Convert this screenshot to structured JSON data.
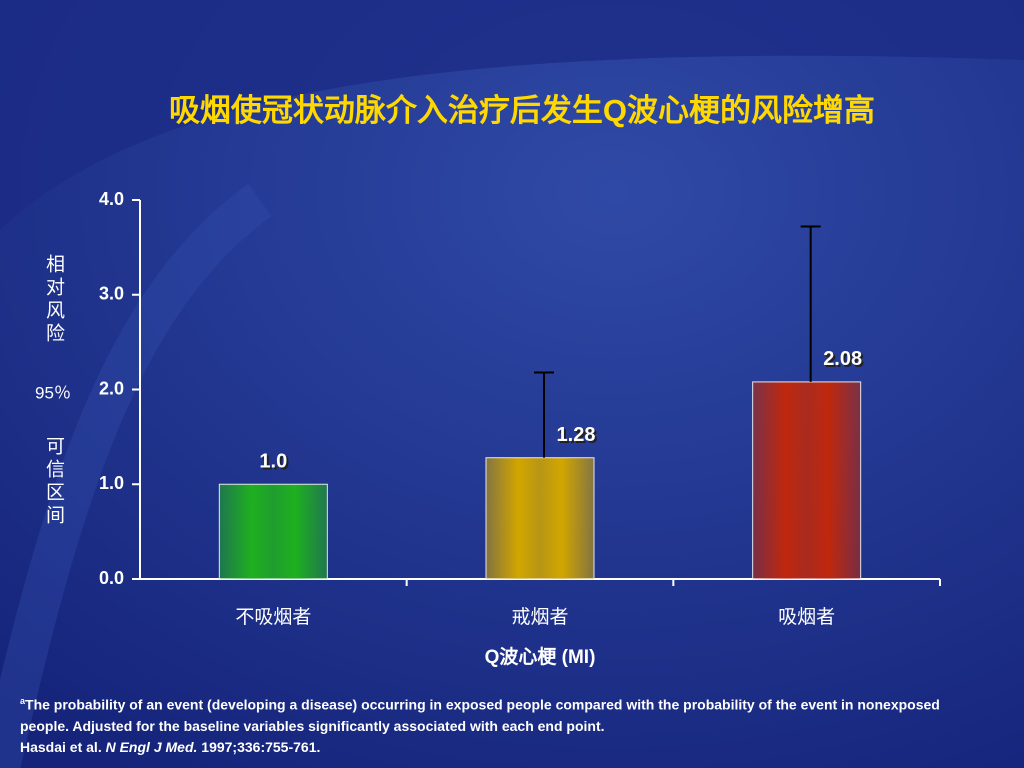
{
  "chart_data": {
    "type": "bar",
    "title": "吸烟使冠状动脉介入治疗后发生Q波心梗的风险增高",
    "categories": [
      "不吸烟者",
      "戒烟者",
      "吸烟者"
    ],
    "values": [
      1.0,
      1.28,
      2.08
    ],
    "value_labels": [
      "1.0",
      "1.28",
      "2.08"
    ],
    "ci_upper": [
      null,
      2.18,
      3.72
    ],
    "colors": [
      "#1fb01f",
      "#d2a600",
      "#c0280c"
    ],
    "ylim": [
      0,
      4
    ],
    "yticks": [
      {
        "value": 0,
        "label": "0.0"
      },
      {
        "value": 1,
        "label": "1.0"
      },
      {
        "value": 2,
        "label": "2.0"
      },
      {
        "value": 3,
        "label": "3.0"
      },
      {
        "value": 4,
        "label": "4.0"
      }
    ],
    "ylabel": [
      "相对风险",
      "95％",
      "可信区间"
    ],
    "xlabel": "Q波心梗 (MI)"
  },
  "footnote": {
    "marker": "a",
    "text": "The probability of an event (developing a disease) occurring in exposed people compared with the probability of the event in nonexposed people. Adjusted for the baseline variables significantly associated with each end point.",
    "citation_authors": "Hasdai et al.",
    "citation_journal": "N Engl J Med.",
    "citation_rest": "1997;336:755-761."
  }
}
